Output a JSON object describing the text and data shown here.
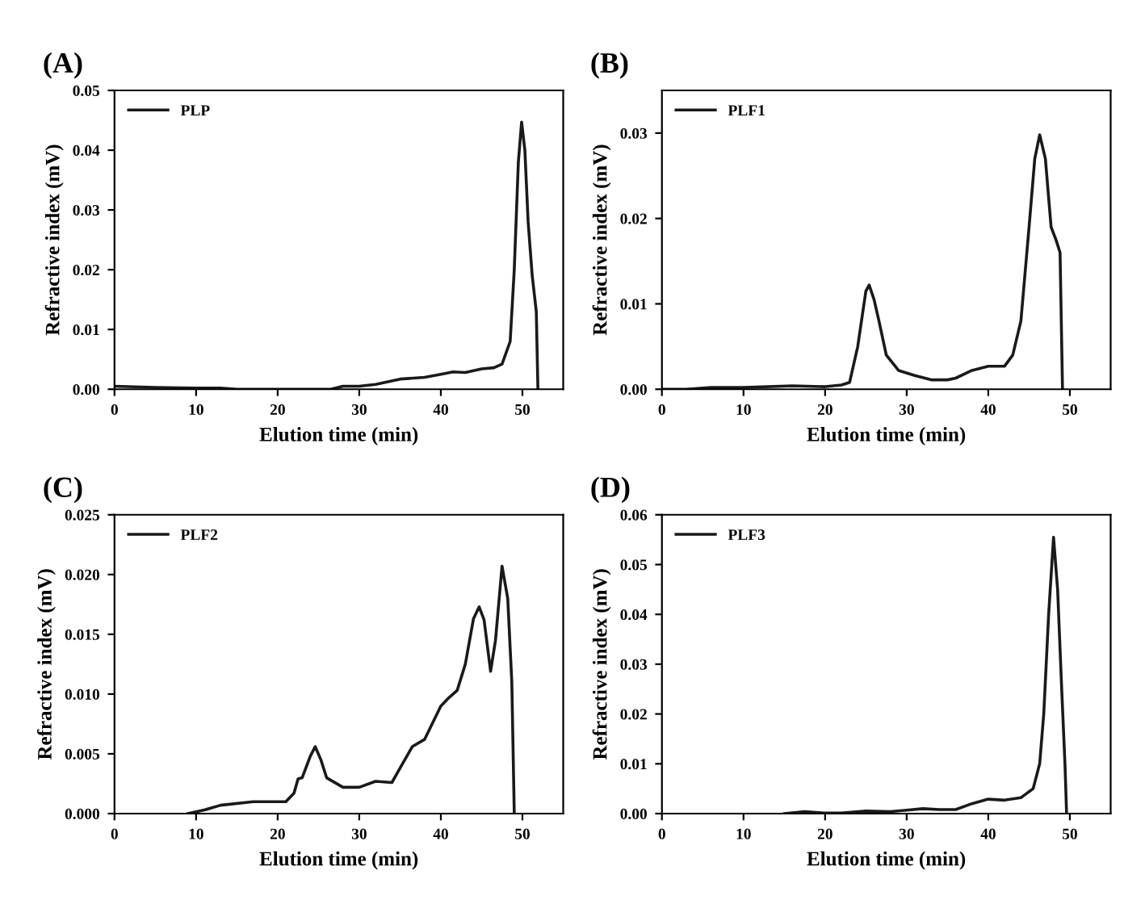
{
  "chart_data": [
    {
      "type": "line",
      "title": "(A)",
      "xlabel": "Elution time (min)",
      "ylabel": "Refractive index (mV)",
      "legend": "top left",
      "grid": false,
      "xlim": [
        0,
        55
      ],
      "xticks": [
        0,
        10,
        20,
        30,
        40,
        50
      ],
      "ylim": [
        0,
        0.05
      ],
      "yticks": [
        {
          "value": 0,
          "label": "0.00"
        },
        {
          "value": 0.01,
          "label": "0.01"
        },
        {
          "value": 0.02,
          "label": "0.02"
        },
        {
          "value": 0.03,
          "label": "0.03"
        },
        {
          "value": 0.04,
          "label": "0.04"
        },
        {
          "value": 0.05,
          "label": "0.05"
        }
      ],
      "series": [
        {
          "name": "PLP",
          "color": "#1a1a1a",
          "x": [
            0,
            5,
            10,
            13,
            15,
            20,
            24,
            26.5,
            28,
            30,
            32,
            35,
            38,
            40,
            41.5,
            43,
            45,
            46.5,
            47.5,
            48.5,
            49,
            49.5,
            49.9,
            50.3,
            50.7,
            51.2,
            51.7,
            51.9
          ],
          "values": [
            0.0005,
            0.0003,
            0.0002,
            0.0002,
            0.0,
            0.0,
            0.0,
            0.0,
            0.0005,
            0.0005,
            0.0008,
            0.0017,
            0.002,
            0.0025,
            0.0029,
            0.0028,
            0.0034,
            0.0036,
            0.0042,
            0.008,
            0.02,
            0.038,
            0.0447,
            0.04,
            0.028,
            0.019,
            0.013,
            0.0
          ]
        }
      ]
    },
    {
      "type": "line",
      "title": "(B)",
      "xlabel": "Elution time (min)",
      "ylabel": "Refractive index (mV)",
      "legend": "top left",
      "grid": false,
      "xlim": [
        0,
        55
      ],
      "xticks": [
        0,
        10,
        20,
        30,
        40,
        50
      ],
      "ylim": [
        0,
        0.035
      ],
      "yticks": [
        {
          "value": 0,
          "label": "0.00"
        },
        {
          "value": 0.01,
          "label": "0.01"
        },
        {
          "value": 0.02,
          "label": "0.02"
        },
        {
          "value": 0.03,
          "label": "0.03"
        }
      ],
      "series": [
        {
          "name": "PLF1",
          "color": "#1a1a1a",
          "x": [
            0,
            3,
            6,
            10,
            16,
            20,
            22,
            23,
            24,
            25,
            25.4,
            26,
            26.6,
            27.5,
            29,
            31,
            33,
            35,
            36,
            38,
            40,
            42,
            43,
            44,
            45,
            45.7,
            46.3,
            47,
            47.7,
            48.3,
            48.8,
            49.1
          ],
          "values": [
            0.0,
            0.0,
            0.0002,
            0.0002,
            0.0004,
            0.0003,
            0.0005,
            0.0008,
            0.005,
            0.0115,
            0.0122,
            0.0105,
            0.008,
            0.004,
            0.0022,
            0.0016,
            0.0011,
            0.0011,
            0.0013,
            0.0022,
            0.0027,
            0.0027,
            0.004,
            0.008,
            0.019,
            0.027,
            0.0298,
            0.027,
            0.019,
            0.0175,
            0.016,
            0.0
          ]
        }
      ]
    },
    {
      "type": "line",
      "title": "(C)",
      "xlabel": "Elution time (min)",
      "ylabel": "Refractive index (mV)",
      "legend": "top left",
      "grid": false,
      "xlim": [
        0,
        55
      ],
      "xticks": [
        0,
        10,
        20,
        30,
        40,
        50
      ],
      "ylim": [
        0,
        0.025
      ],
      "yticks": [
        {
          "value": 0,
          "label": "0.000"
        },
        {
          "value": 0.005,
          "label": "0.005"
        },
        {
          "value": 0.01,
          "label": "0.010"
        },
        {
          "value": 0.015,
          "label": "0.015"
        },
        {
          "value": 0.02,
          "label": "0.020"
        },
        {
          "value": 0.025,
          "label": "0.025"
        }
      ],
      "series": [
        {
          "name": "PLF2",
          "color": "#1a1a1a",
          "x": [
            9,
            11,
            13,
            17,
            21,
            22,
            22.5,
            23,
            24,
            24.6,
            25.3,
            26,
            28,
            30,
            32,
            34,
            35,
            36.5,
            38,
            40,
            41,
            42,
            43,
            44,
            44.7,
            45.3,
            46.1,
            46.7,
            47.5,
            48.2,
            48.7,
            49
          ],
          "values": [
            0.0,
            0.0003,
            0.0007,
            0.001,
            0.001,
            0.0017,
            0.0029,
            0.003,
            0.0048,
            0.0056,
            0.0045,
            0.003,
            0.0022,
            0.0022,
            0.0027,
            0.0026,
            0.0038,
            0.0056,
            0.0062,
            0.009,
            0.0097,
            0.0103,
            0.0125,
            0.0163,
            0.0173,
            0.0162,
            0.0119,
            0.0145,
            0.0207,
            0.018,
            0.011,
            0.0
          ]
        }
      ]
    },
    {
      "type": "line",
      "title": "(D)",
      "xlabel": "Elution time (min)",
      "ylabel": "Refractive index (mV)",
      "legend": "top left",
      "grid": false,
      "xlim": [
        0,
        55
      ],
      "xticks": [
        0,
        10,
        20,
        30,
        40,
        50
      ],
      "ylim": [
        0,
        0.06
      ],
      "yticks": [
        {
          "value": 0,
          "label": "0.00"
        },
        {
          "value": 0.01,
          "label": "0.01"
        },
        {
          "value": 0.02,
          "label": "0.02"
        },
        {
          "value": 0.03,
          "label": "0.03"
        },
        {
          "value": 0.04,
          "label": "0.04"
        },
        {
          "value": 0.05,
          "label": "0.05"
        },
        {
          "value": 0.06,
          "label": "0.06"
        }
      ],
      "series": [
        {
          "name": "PLF3",
          "color": "#1a1a1a",
          "x": [
            15,
            17.5,
            20,
            22,
            25,
            28,
            30,
            32,
            34,
            36,
            38,
            40,
            42,
            44,
            45.5,
            46.3,
            46.8,
            47.4,
            48,
            48.5,
            49,
            49.4,
            49.6
          ],
          "values": [
            0.0,
            0.0004,
            0.0001,
            0.0001,
            0.0005,
            0.0004,
            0.0007,
            0.001,
            0.0008,
            0.0008,
            0.002,
            0.0029,
            0.0027,
            0.0032,
            0.005,
            0.01,
            0.02,
            0.04,
            0.0555,
            0.045,
            0.025,
            0.01,
            0.0
          ]
        }
      ]
    }
  ]
}
